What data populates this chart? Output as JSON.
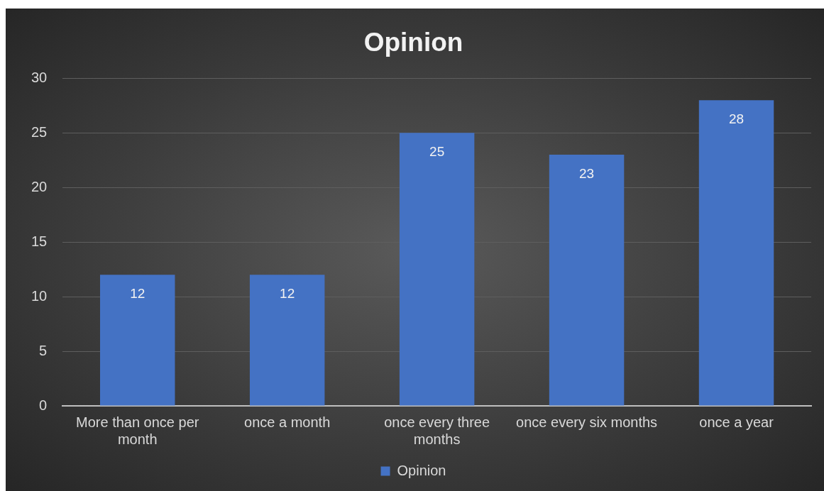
{
  "chart_data": {
    "type": "bar",
    "title": "Opinion",
    "categories": [
      "More than once per month",
      "once a month",
      "once every three months",
      "once every six months",
      "once a year"
    ],
    "series": [
      {
        "name": "Opinion",
        "color": "#4472c4",
        "values": [
          12,
          12,
          25,
          23,
          28
        ]
      }
    ],
    "ylim": [
      0,
      30
    ],
    "yticks": [
      0,
      5,
      10,
      15,
      20,
      25,
      30
    ],
    "grid": "y",
    "legend": "bottom",
    "data_labels": true
  }
}
